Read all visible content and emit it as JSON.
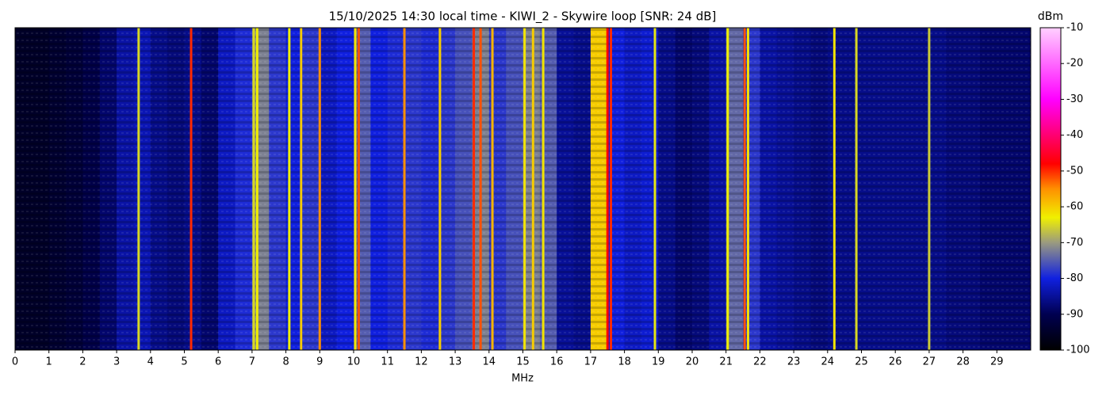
{
  "chart_data": {
    "type": "spectrogram",
    "title": "15/10/2025 14:30 local time - KIWI_2 - Skywire loop [SNR: 24 dB]",
    "xlabel": "MHz",
    "colorbar_label": "dBm",
    "xlim": [
      0,
      30
    ],
    "xticks": [
      0,
      1,
      2,
      3,
      4,
      5,
      6,
      7,
      8,
      9,
      10,
      11,
      12,
      13,
      14,
      15,
      16,
      17,
      18,
      19,
      20,
      21,
      22,
      23,
      24,
      25,
      26,
      27,
      28,
      29
    ],
    "clim": [
      -100,
      -10
    ],
    "cticks": [
      -100,
      -90,
      -80,
      -70,
      -60,
      -50,
      -40,
      -30,
      -20,
      -10
    ],
    "colormap": [
      [
        -100,
        "#000000"
      ],
      [
        -90,
        "#000050"
      ],
      [
        -80,
        "#1020e0"
      ],
      [
        -70,
        "#9a9a80"
      ],
      [
        -63,
        "#f0f000"
      ],
      [
        -55,
        "#ff9000"
      ],
      [
        -48,
        "#ff0000"
      ],
      [
        -30,
        "#ff00ff"
      ],
      [
        -10,
        "#ffd0ff"
      ]
    ],
    "x": [
      0.25,
      0.75,
      1.25,
      1.75,
      2.25,
      2.75,
      3.25,
      3.75,
      4.25,
      4.75,
      5.25,
      5.75,
      6.25,
      6.75,
      7.25,
      7.75,
      8.25,
      8.75,
      9.25,
      9.75,
      10.25,
      10.75,
      11.25,
      11.75,
      12.25,
      12.75,
      13.25,
      13.75,
      14.25,
      14.75,
      15.25,
      15.75,
      16.25,
      16.75,
      17.25,
      17.75,
      18.25,
      18.75,
      19.25,
      19.75,
      20.25,
      20.75,
      21.25,
      21.75,
      22.25,
      22.75,
      23.25,
      23.75,
      24.25,
      24.75,
      25.25,
      25.75,
      26.25,
      26.75,
      27.25,
      27.75,
      28.25,
      28.75,
      29.25,
      29.75
    ],
    "values": [
      -95,
      -95,
      -94,
      -93,
      -91,
      -88,
      -84,
      -83,
      -86,
      -87,
      -86,
      -88,
      -82,
      -79,
      -72,
      -78,
      -80,
      -78,
      -82,
      -80,
      -75,
      -80,
      -79,
      -78,
      -79,
      -78,
      -76,
      -72,
      -78,
      -76,
      -72,
      -75,
      -85,
      -86,
      -60,
      -80,
      -82,
      -81,
      -86,
      -88,
      -87,
      -84,
      -74,
      -78,
      -84,
      -85,
      -86,
      -87,
      -86,
      -86,
      -86,
      -86,
      -86,
      -86,
      -86,
      -87,
      -87,
      -88,
      -88,
      -88
    ],
    "signals": {
      "x": [
        3.65,
        5.2,
        7.05,
        7.15,
        8.1,
        8.45,
        9.0,
        10.05,
        10.15,
        11.5,
        12.55,
        13.55,
        13.75,
        14.1,
        15.05,
        15.3,
        15.6,
        17.5,
        17.6,
        18.9,
        21.05,
        21.55,
        21.65,
        24.2,
        24.85,
        27.0
      ],
      "values": [
        -65,
        -50,
        -65,
        -63,
        -63,
        -60,
        -55,
        -62,
        -52,
        -55,
        -60,
        -50,
        -52,
        -58,
        -62,
        -60,
        -62,
        -48,
        -50,
        -64,
        -63,
        -52,
        -62,
        -62,
        -65,
        -66
      ]
    }
  }
}
